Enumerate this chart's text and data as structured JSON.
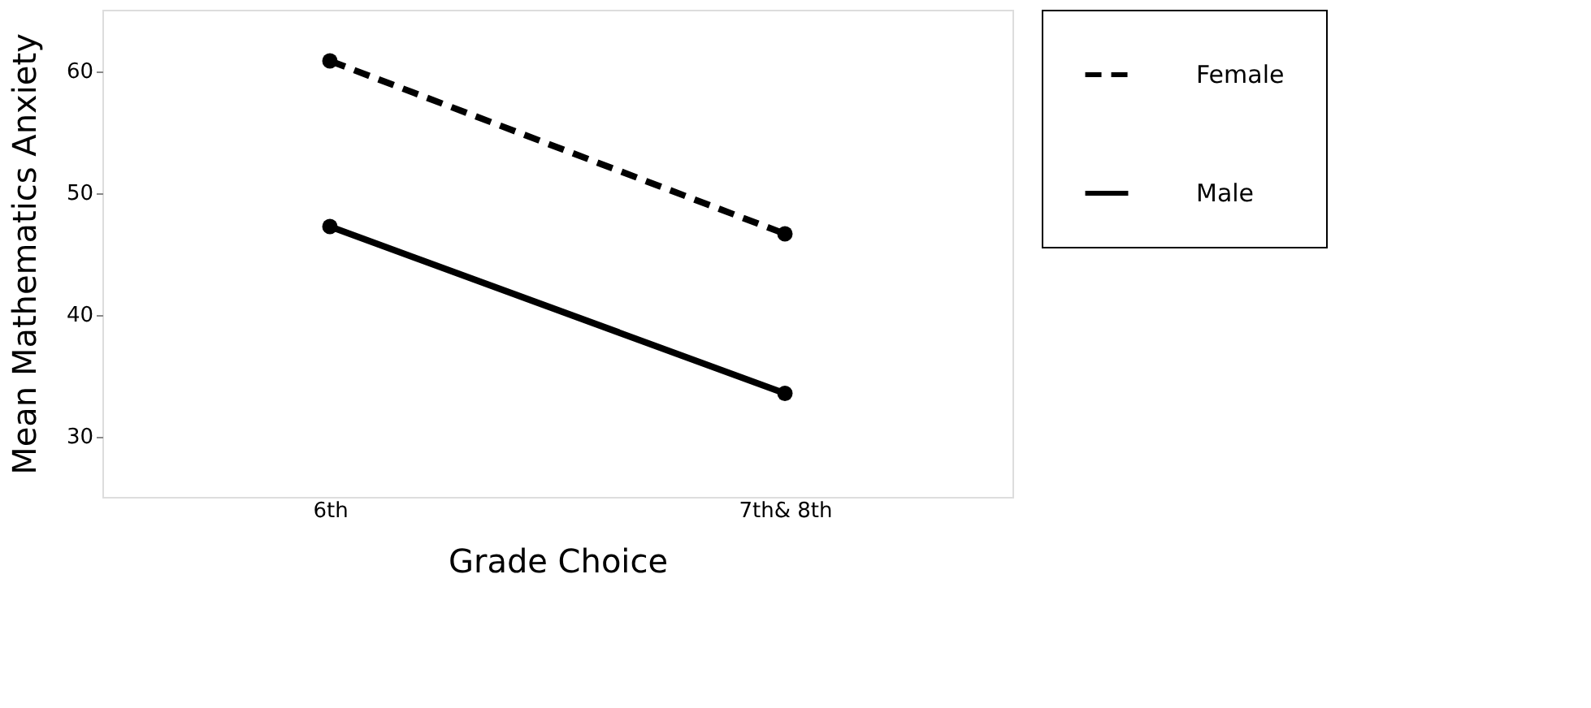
{
  "chart_data": {
    "type": "line",
    "xlabel": "Grade Choice",
    "ylabel": "Mean Mathematics Anxiety",
    "categories": [
      "6th",
      "7th& 8th"
    ],
    "series": [
      {
        "name": "Female",
        "color": "#000000",
        "values": [
          60.8,
          46.6
        ],
        "line_style": "dashed"
      },
      {
        "name": "Male",
        "color": "#000000",
        "values": [
          47.2,
          33.5
        ],
        "line_style": "solid"
      }
    ],
    "ylim": [
      25,
      65
    ],
    "yticks": [
      30,
      40,
      50,
      60
    ],
    "grid": false,
    "legend": "top right",
    "marker": "circle"
  }
}
